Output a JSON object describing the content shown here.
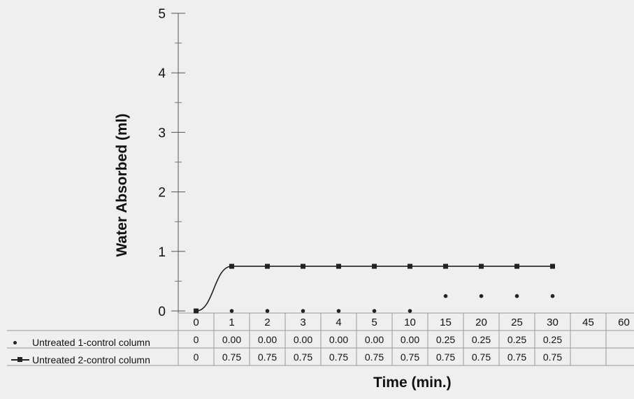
{
  "chart_data": {
    "type": "line",
    "ylabel": "Water Absorbed (ml)",
    "xlabel": "Time (min.)",
    "ylim": [
      0,
      5
    ],
    "yticks": [
      "0",
      "1",
      "2",
      "3",
      "4",
      "5"
    ],
    "categories": [
      "0",
      "1",
      "2",
      "3",
      "4",
      "5",
      "10",
      "15",
      "20",
      "25",
      "30",
      "45",
      "60"
    ],
    "series": [
      {
        "name": "Untreated 1-control column",
        "marker": "dot",
        "line": false,
        "values": [
          0,
          0.0,
          0.0,
          0.0,
          0.0,
          0.0,
          0.0,
          0.25,
          0.25,
          0.25,
          0.25,
          null,
          null
        ],
        "table_values": [
          "0",
          "0.00",
          "0.00",
          "0.00",
          "0.00",
          "0.00",
          "0.00",
          "0.25",
          "0.25",
          "0.25",
          "0.25",
          "",
          ""
        ]
      },
      {
        "name": "Untreated 2-control column",
        "marker": "square",
        "line": true,
        "values": [
          0,
          0.75,
          0.75,
          0.75,
          0.75,
          0.75,
          0.75,
          0.75,
          0.75,
          0.75,
          0.75,
          null,
          null
        ],
        "table_values": [
          "0",
          "0.75",
          "0.75",
          "0.75",
          "0.75",
          "0.75",
          "0.75",
          "0.75",
          "0.75",
          "0.75",
          "0.75",
          "",
          ""
        ]
      }
    ],
    "data_table": true,
    "grid": false
  }
}
